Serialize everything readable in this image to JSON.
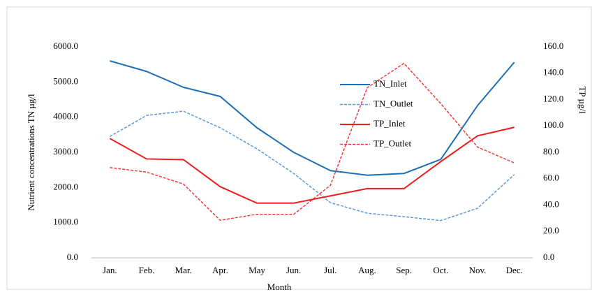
{
  "chart_data": {
    "type": "line",
    "categories": [
      "Jan.",
      "Feb.",
      "Mar.",
      "Apr.",
      "May",
      "Jun.",
      "Jul.",
      "Aug.",
      "Sep.",
      "Oct.",
      "Nov.",
      "Dec."
    ],
    "x_label": "Month",
    "y_label": "Nutrient concentrations TN µg/l",
    "y2_label": "TP µg/l",
    "ylim": [
      0,
      6000
    ],
    "yticks": [
      {
        "value": 0,
        "label": "0.0"
      },
      {
        "value": 1000,
        "label": "1000.0"
      },
      {
        "value": 2000,
        "label": "2000.0"
      },
      {
        "value": 3000,
        "label": "3000.0"
      },
      {
        "value": 4000,
        "label": "4000.0"
      },
      {
        "value": 5000,
        "label": "5000.0"
      },
      {
        "value": 6000,
        "label": "6000.0"
      }
    ],
    "y2lim": [
      0,
      160
    ],
    "y2ticks": [
      {
        "value": 0,
        "label": "0.0"
      },
      {
        "value": 20,
        "label": "20.0"
      },
      {
        "value": 40,
        "label": "40.0"
      },
      {
        "value": 60,
        "label": "60.0"
      },
      {
        "value": 80,
        "label": "80.0"
      },
      {
        "value": 100,
        "label": "100.0"
      },
      {
        "value": 120,
        "label": "120.0"
      },
      {
        "value": 140,
        "label": "140.0"
      },
      {
        "value": 160,
        "label": "160.0"
      }
    ],
    "series": [
      {
        "name": "TN_Inlet",
        "color": "#1f6fb4",
        "dashed": false,
        "values": [
          5600,
          5300,
          4850,
          4590,
          3700,
          3000,
          2480,
          2350,
          2400,
          2800,
          4330,
          5560
        ]
      },
      {
        "name": "TN_Outlet",
        "color": "#5b9bd5",
        "dashed": true,
        "values": [
          3450,
          4050,
          4170,
          3700,
          3100,
          2400,
          1570,
          1270,
          1170,
          1060,
          1410,
          2370
        ]
      },
      {
        "name": "TP_Inlet",
        "color": "#ee1c1c",
        "dashed": false,
        "axis": "y2",
        "values": [
          90.5,
          75,
          74.5,
          54,
          41.5,
          41.5,
          47,
          52.5,
          52.5,
          73,
          92.5,
          99
        ]
      },
      {
        "name": "TP_Outlet",
        "color": "#ee3b3b",
        "dashed": true,
        "axis": "y2",
        "values": [
          68.5,
          65,
          56,
          28.5,
          33,
          33,
          55,
          129,
          147.5,
          117,
          84,
          72
        ]
      }
    ]
  }
}
